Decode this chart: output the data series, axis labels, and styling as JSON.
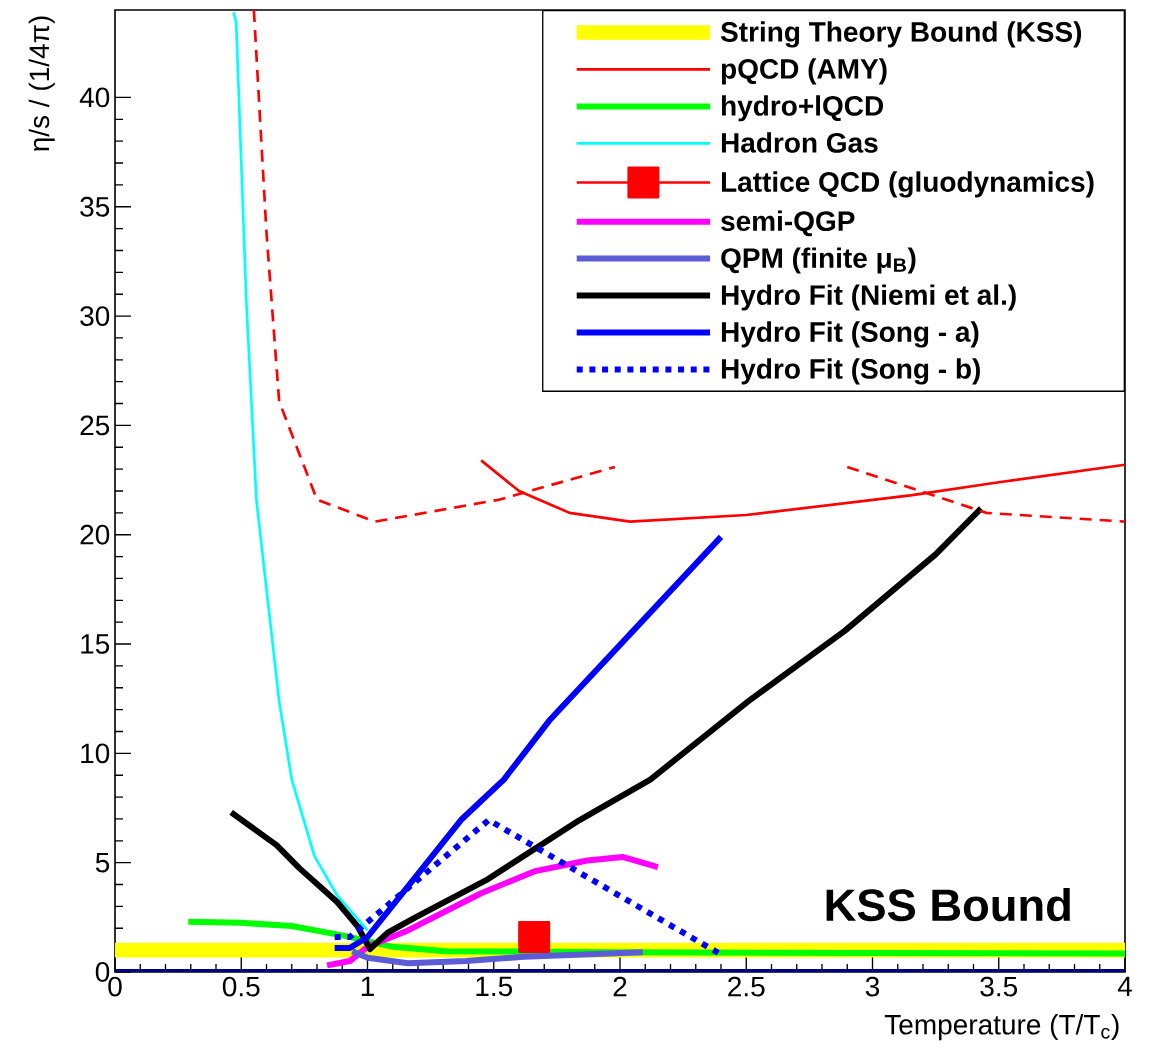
{
  "chart_data": {
    "type": "line",
    "xlabel": "Temperature (T/T$_{c}$)",
    "ylabel": "η/s / (1/4π)",
    "xlim": [
      0,
      4
    ],
    "ylim": [
      0,
      44
    ],
    "xticks": [
      0,
      0.5,
      1,
      1.5,
      2,
      2.5,
      3,
      3.5,
      4
    ],
    "yticks": [
      0,
      5,
      10,
      15,
      20,
      25,
      30,
      35,
      40
    ],
    "legend": "top right",
    "marker": "none",
    "line_style": "solid",
    "annotations": [
      "KSS Bound"
    ],
    "series": [
      {
        "name": "String Theory Bound (KSS)",
        "color": "#ffff00",
        "x": [
          0,
          4
        ],
        "values": [
          1,
          1
        ]
      },
      {
        "name": "pQCD (AMY)",
        "color": "#ff0000",
        "x": [
          1.45,
          1.6,
          1.8,
          2.04,
          2.5,
          3.15,
          3.5,
          4
        ],
        "values": [
          23.4,
          22.0,
          21.0,
          20.6,
          20.9,
          21.8,
          22.4,
          23.2
        ]
      },
      {
        "name": "hydro+lQCD",
        "color": "#00ff00",
        "x": [
          0.29,
          0.5,
          0.7,
          0.91,
          1.1,
          1.31,
          2,
          3,
          4
        ],
        "values": [
          2.3,
          2.25,
          2.1,
          1.65,
          1.15,
          0.95,
          0.9,
          0.87,
          0.85
        ]
      },
      {
        "name": "Hadron Gas",
        "color": "#00ffff",
        "x": [
          0.47,
          0.48,
          0.52,
          0.56,
          0.65,
          0.7,
          0.79,
          0.88,
          1.0
        ],
        "values": [
          43.9,
          43.4,
          30.7,
          21.6,
          12.4,
          8.8,
          5.3,
          3.5,
          1.9
        ]
      },
      {
        "name": "Lattice QCD (gluodynamics)",
        "type": "scatter",
        "marker": "square",
        "color": "#ff0000",
        "x": [
          1.66
        ],
        "values": [
          1.6
        ]
      },
      {
        "name": "semi-QGP",
        "color": "#ff00ff",
        "x": [
          0.84,
          0.93,
          1.0,
          1.16,
          1.45,
          1.66,
          1.87,
          2.01,
          2.15
        ],
        "values": [
          0.3,
          0.5,
          1.15,
          1.9,
          3.6,
          4.6,
          5.1,
          5.26,
          4.8
        ]
      },
      {
        "name": "QPM (finite μ$_{B}$)",
        "color": "#5c5cd6",
        "x": [
          0.94,
          1.0,
          1.16,
          1.39,
          1.62,
          2.09
        ],
        "values": [
          0.95,
          0.65,
          0.4,
          0.5,
          0.7,
          0.9
        ]
      },
      {
        "name": "Hydro Fit (Niemi et al.)",
        "color": "#000000",
        "x": [
          0.46,
          0.64,
          0.73,
          0.88,
          0.96,
          1.01,
          1.08,
          1.19,
          1.47,
          1.84,
          2.12,
          2.51,
          2.89,
          3.25,
          3.43
        ],
        "values": [
          7.3,
          5.8,
          4.75,
          3.2,
          2.1,
          1.05,
          1.8,
          2.5,
          4.2,
          6.95,
          8.8,
          12.4,
          15.6,
          19.1,
          21.2
        ]
      },
      {
        "name": "Hydro Fit (Song - a)",
        "color": "#0000ff",
        "x": [
          0.87,
          0.93,
          1.0,
          1.37,
          1.54,
          1.72,
          2.4
        ],
        "values": [
          1.1,
          1.1,
          1.6,
          6.95,
          8.8,
          11.5,
          19.9
        ]
      },
      {
        "name": "Hydro Fit (Song - b)",
        "color": "#0000ff",
        "line_style": "dotted",
        "x": [
          0.87,
          0.93,
          1.48,
          2.4
        ],
        "values": [
          1.6,
          1.6,
          6.95,
          0.8
        ]
      },
      {
        "color": "#ff0000",
        "line_style": "dashed",
        "x": [
          0.55,
          0.6,
          0.65,
          0.8,
          1.03,
          1.52,
          1.98
        ],
        "values": [
          44,
          33.8,
          26.1,
          21.6,
          20.6,
          21.6,
          23.1
        ]
      },
      {
        "color": "#ff0000",
        "line_style": "dashed",
        "x": [
          2.9,
          3.45,
          4
        ],
        "values": [
          23.1,
          21.0,
          20.6
        ]
      },
      {
        "color": "#000080",
        "x": [
          0,
          4
        ],
        "values": [
          0,
          0
        ]
      }
    ]
  }
}
